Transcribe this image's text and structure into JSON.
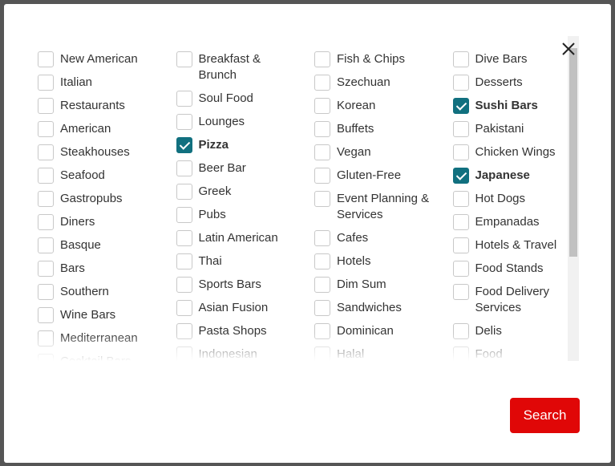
{
  "columns": [
    [
      {
        "label": "New American",
        "checked": false
      },
      {
        "label": "Italian",
        "checked": false
      },
      {
        "label": "Restaurants",
        "checked": false
      },
      {
        "label": "American",
        "checked": false
      },
      {
        "label": "Steakhouses",
        "checked": false
      },
      {
        "label": "Seafood",
        "checked": false
      },
      {
        "label": "Gastropubs",
        "checked": false
      },
      {
        "label": "Diners",
        "checked": false
      },
      {
        "label": "Basque",
        "checked": false
      },
      {
        "label": "Bars",
        "checked": false
      },
      {
        "label": "Southern",
        "checked": false
      },
      {
        "label": "Wine Bars",
        "checked": false
      },
      {
        "label": "Mediterranean",
        "checked": false
      },
      {
        "label": "Cocktail Bars",
        "checked": false
      }
    ],
    [
      {
        "label": "Breakfast & Brunch",
        "checked": false
      },
      {
        "label": "Soul Food",
        "checked": false
      },
      {
        "label": "Lounges",
        "checked": false
      },
      {
        "label": "Pizza",
        "checked": true
      },
      {
        "label": "Beer Bar",
        "checked": false
      },
      {
        "label": "Greek",
        "checked": false
      },
      {
        "label": "Pubs",
        "checked": false
      },
      {
        "label": "Latin American",
        "checked": false
      },
      {
        "label": "Thai",
        "checked": false
      },
      {
        "label": "Sports Bars",
        "checked": false
      },
      {
        "label": "Asian Fusion",
        "checked": false
      },
      {
        "label": "Pasta Shops",
        "checked": false
      },
      {
        "label": "Indonesian",
        "checked": false
      }
    ],
    [
      {
        "label": "Fish & Chips",
        "checked": false
      },
      {
        "label": "Szechuan",
        "checked": false
      },
      {
        "label": "Korean",
        "checked": false
      },
      {
        "label": "Buffets",
        "checked": false
      },
      {
        "label": "Vegan",
        "checked": false
      },
      {
        "label": "Gluten-Free",
        "checked": false
      },
      {
        "label": "Event Planning & Services",
        "checked": false
      },
      {
        "label": "Cafes",
        "checked": false
      },
      {
        "label": "Hotels",
        "checked": false
      },
      {
        "label": "Dim Sum",
        "checked": false
      },
      {
        "label": "Sandwiches",
        "checked": false
      },
      {
        "label": "Dominican",
        "checked": false
      },
      {
        "label": "Halal",
        "checked": false
      }
    ],
    [
      {
        "label": "Dive Bars",
        "checked": false
      },
      {
        "label": "Desserts",
        "checked": false
      },
      {
        "label": "Sushi Bars",
        "checked": true
      },
      {
        "label": "Pakistani",
        "checked": false
      },
      {
        "label": "Chicken Wings",
        "checked": false
      },
      {
        "label": "Japanese",
        "checked": true
      },
      {
        "label": "Hot Dogs",
        "checked": false
      },
      {
        "label": "Empanadas",
        "checked": false
      },
      {
        "label": "Hotels & Travel",
        "checked": false
      },
      {
        "label": "Food Stands",
        "checked": false
      },
      {
        "label": "Food Delivery Services",
        "checked": false
      },
      {
        "label": "Delis",
        "checked": false
      },
      {
        "label": "Food",
        "checked": false
      }
    ]
  ],
  "button": "Search"
}
